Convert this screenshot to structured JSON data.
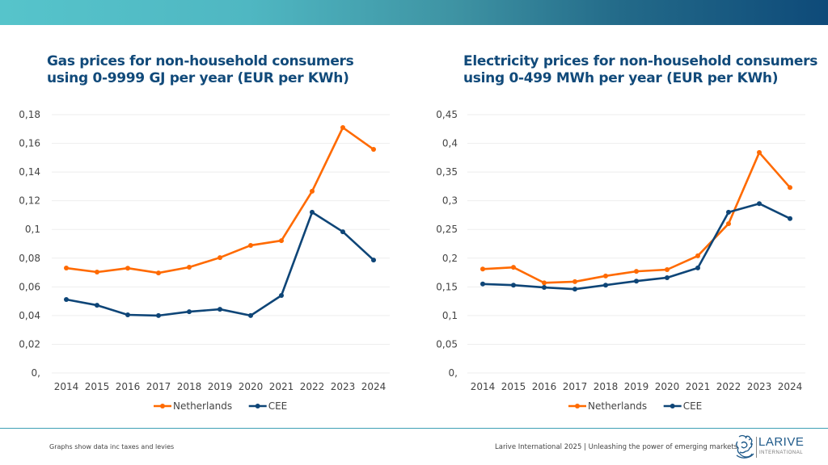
{
  "header": {
    "gradient_start": "#56c4cb",
    "gradient_end": "#0e4a79"
  },
  "colors": {
    "netherlands": "#ff6a00",
    "cee": "#0e4577",
    "grid": "#eeeeee",
    "title": "#114a7a"
  },
  "chart_data": [
    {
      "type": "line",
      "title": "Gas prices for non-household consumers using 0-9999 GJ per year (EUR per KWh)",
      "title_lines": [
        "Gas prices for non-household consumers",
        "using 0-9999 GJ per year (EUR per KWh)"
      ],
      "xlabel": "",
      "ylabel": "",
      "x": [
        "2014",
        "2015",
        "2016",
        "2017",
        "2018",
        "2019",
        "2020",
        "2021",
        "2022",
        "2023",
        "2024"
      ],
      "ylim": [
        0,
        0.18
      ],
      "yticks": [
        0,
        0.02,
        0.04,
        0.06,
        0.08,
        0.1,
        0.12,
        0.14,
        0.16,
        0.18
      ],
      "ytick_labels": [
        "0,",
        "0,02",
        "0,04",
        "0,06",
        "0,08",
        "0,1",
        "0,12",
        "0,14",
        "0,16",
        "0,18"
      ],
      "grid": true,
      "legend_position": "bottom-center",
      "series": [
        {
          "name": "Netherlands",
          "color": "#ff6a00",
          "values": [
            0.0731,
            0.0703,
            0.073,
            0.0697,
            0.0737,
            0.0804,
            0.0889,
            0.0922,
            0.1266,
            0.171,
            0.1558
          ]
        },
        {
          "name": "CEE",
          "color": "#0e4577",
          "values": [
            0.0512,
            0.0472,
            0.0405,
            0.04,
            0.0427,
            0.0444,
            0.04,
            0.054,
            0.112,
            0.0984,
            0.0787
          ]
        }
      ]
    },
    {
      "type": "line",
      "title": "Electricity prices for non-household consumers using 0-499 MWh per year (EUR per KWh)",
      "title_lines": [
        "Electricity prices for non-household consumers",
        "using 0-499 MWh per year (EUR per KWh)"
      ],
      "xlabel": "",
      "ylabel": "",
      "x": [
        "2014",
        "2015",
        "2016",
        "2017",
        "2018",
        "2019",
        "2020",
        "2021",
        "2022",
        "2023",
        "2024"
      ],
      "ylim": [
        0,
        0.45
      ],
      "yticks": [
        0,
        0.05,
        0.1,
        0.15,
        0.2,
        0.25,
        0.3,
        0.35,
        0.4,
        0.45
      ],
      "ytick_labels": [
        "0,",
        "0,05",
        "0,1",
        "0,15",
        "0,2",
        "0,25",
        "0,3",
        "0,35",
        "0,4",
        "0,45"
      ],
      "grid": true,
      "legend_position": "bottom-center",
      "series": [
        {
          "name": "Netherlands",
          "color": "#ff6a00",
          "values": [
            0.181,
            0.184,
            0.157,
            0.159,
            0.169,
            0.177,
            0.18,
            0.204,
            0.26,
            0.384,
            0.323
          ]
        },
        {
          "name": "CEE",
          "color": "#0e4577",
          "values": [
            0.155,
            0.153,
            0.149,
            0.146,
            0.153,
            0.16,
            0.166,
            0.183,
            0.28,
            0.295,
            0.269
          ]
        }
      ]
    }
  ],
  "footer": {
    "note": "Graphs show data inc taxes and levies",
    "credit": "Larive International 2025 | Unleashing the power of emerging markets",
    "logo_word": "LARIVE",
    "logo_sub": "INTERNATIONAL"
  }
}
